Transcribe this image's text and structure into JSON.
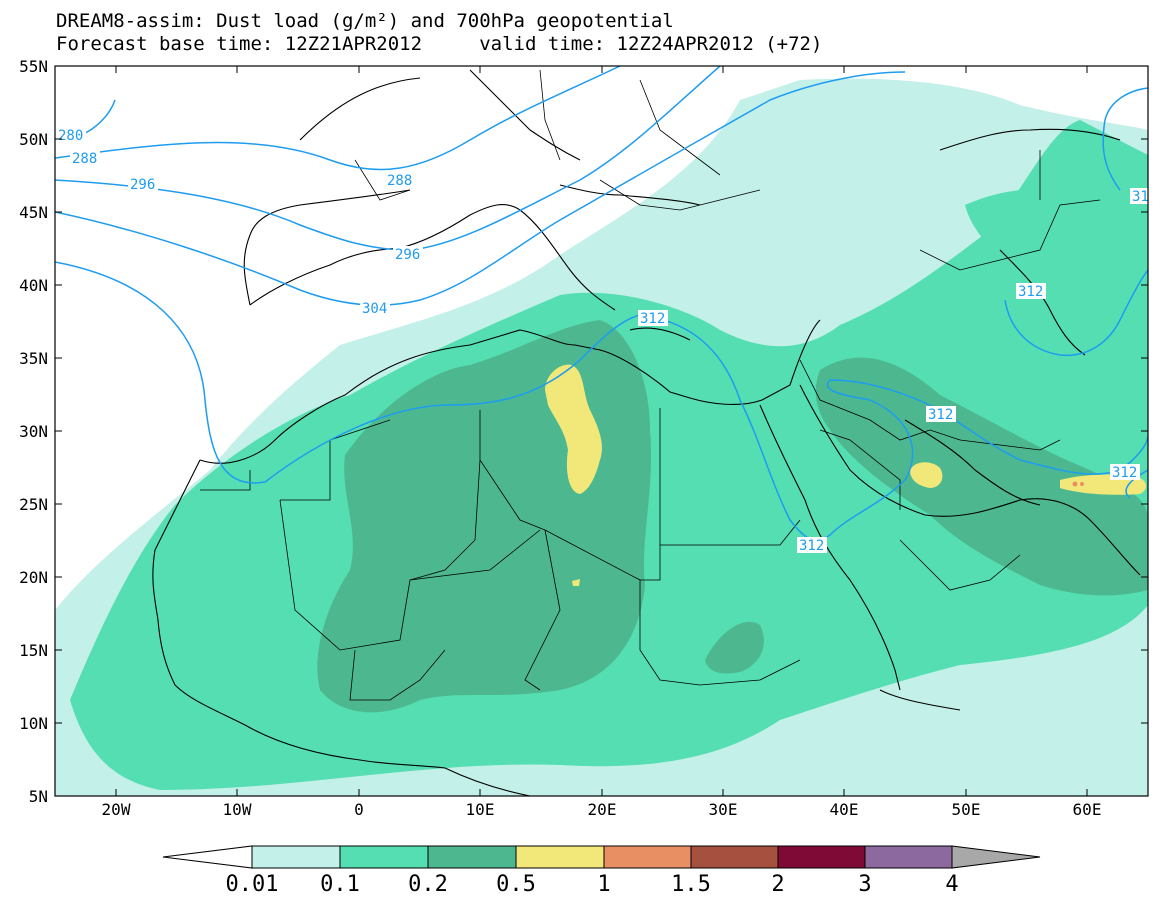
{
  "title_line1": "DREAM8-assim: Dust load (g/m²) and 700hPa geopotential",
  "title_line2": "Forecast base time: 12Z21APR2012     valid time: 12Z24APR2012 (+72)",
  "axes": {
    "lat_labels": [
      "55N",
      "50N",
      "45N",
      "40N",
      "35N",
      "30N",
      "25N",
      "20N",
      "15N",
      "10N",
      "5N"
    ],
    "lon_labels": [
      "20W",
      "10W",
      "0",
      "10E",
      "20E",
      "30E",
      "40E",
      "50E",
      "60E"
    ]
  },
  "contour_labels": [
    "280",
    "288",
    "296",
    "288",
    "296",
    "304",
    "312",
    "312",
    "312",
    "312",
    "312",
    "31"
  ],
  "colorbar": {
    "levels": [
      "0.01",
      "0.1",
      "0.2",
      "0.5",
      "1",
      "1.5",
      "2",
      "3",
      "4"
    ],
    "colors": [
      "#c3f0e8",
      "#55deb1",
      "#4db890",
      "#f2e87a",
      "#e89064",
      "#a65040",
      "#7f0a36",
      "#8c6aa0"
    ],
    "under_color": "#ffffff",
    "over_color": "#a8a8a8"
  },
  "colors": {
    "very_light": "#c3f0e8",
    "light": "#55deb1",
    "medium": "#4db890",
    "yellow": "#f2e87a",
    "orange": "#e89064",
    "contour": "#1e9cf0"
  }
}
